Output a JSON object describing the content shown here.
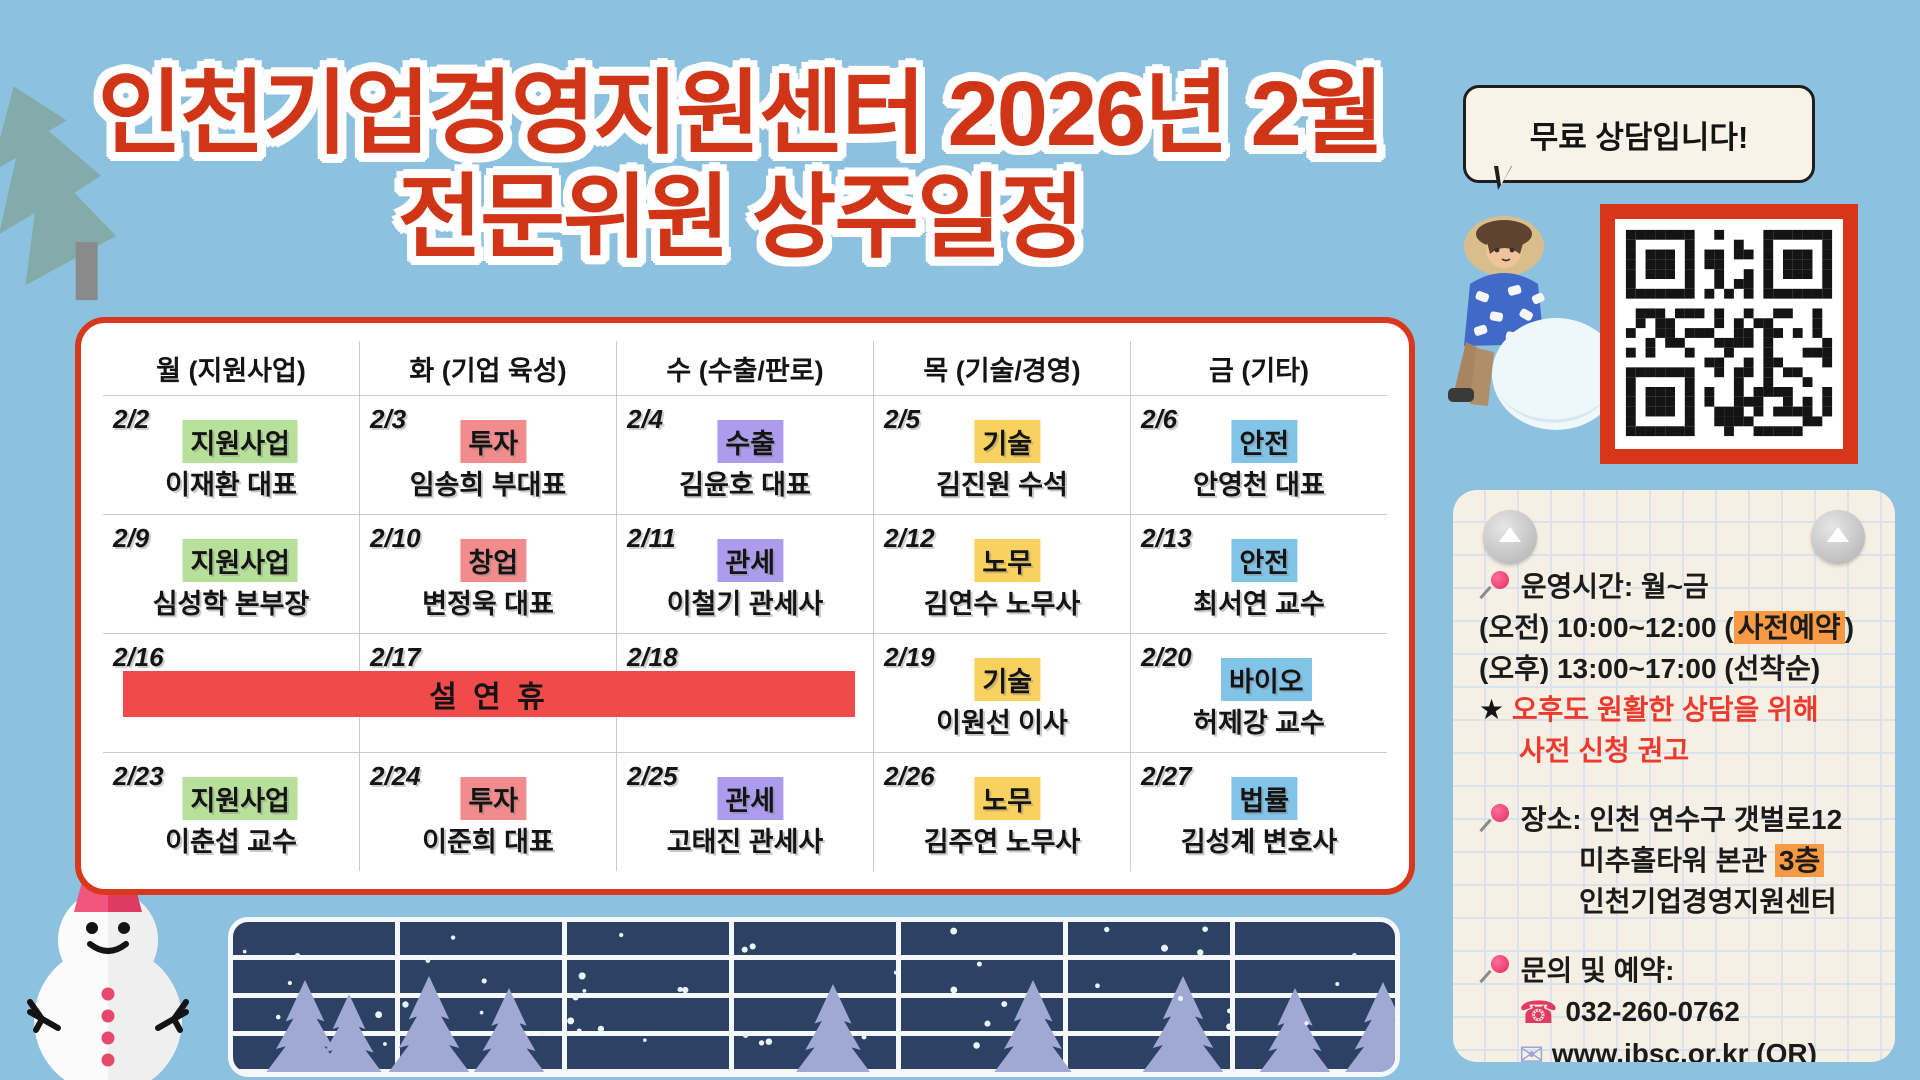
{
  "title": {
    "line1": "인천기업경영지원센터 2026년 2월",
    "line2": "전문위원 상주일정"
  },
  "speech_bubble": {
    "text": "무료 상담입니다!"
  },
  "calendar": {
    "headers": [
      "월 (지원사업)",
      "화 (기업 육성)",
      "수 (수출/판로)",
      "목 (기술/경영)",
      "금 (기타)"
    ],
    "holiday_banner": "설 연 휴",
    "weeks": [
      {
        "cells": [
          {
            "date": "2/2",
            "tag": "지원사업",
            "tag_color": "green",
            "name": "이재환 대표"
          },
          {
            "date": "2/3",
            "tag": "투자",
            "tag_color": "pink",
            "name": "임송희 부대표"
          },
          {
            "date": "2/4",
            "tag": "수출",
            "tag_color": "purple",
            "name": "김윤호 대표"
          },
          {
            "date": "2/5",
            "tag": "기술",
            "tag_color": "yellow",
            "name": "김진원 수석"
          },
          {
            "date": "2/6",
            "tag": "안전",
            "tag_color": "blue",
            "name": "안영천 대표"
          }
        ]
      },
      {
        "cells": [
          {
            "date": "2/9",
            "tag": "지원사업",
            "tag_color": "green",
            "name": "심성학 본부장"
          },
          {
            "date": "2/10",
            "tag": "창업",
            "tag_color": "pink",
            "name": "변정욱 대표"
          },
          {
            "date": "2/11",
            "tag": "관세",
            "tag_color": "purple",
            "name": "이철기 관세사"
          },
          {
            "date": "2/12",
            "tag": "노무",
            "tag_color": "yellow",
            "name": "김연수 노무사"
          },
          {
            "date": "2/13",
            "tag": "안전",
            "tag_color": "blue",
            "name": "최서연 교수"
          }
        ]
      },
      {
        "cells": [
          {
            "date": "2/16",
            "tag": "",
            "tag_color": "",
            "name": ""
          },
          {
            "date": "2/17",
            "tag": "",
            "tag_color": "",
            "name": ""
          },
          {
            "date": "2/18",
            "tag": "",
            "tag_color": "",
            "name": ""
          },
          {
            "date": "2/19",
            "tag": "기술",
            "tag_color": "yellow",
            "name": "이원선 이사"
          },
          {
            "date": "2/20",
            "tag": "바이오",
            "tag_color": "blue",
            "name": "허제강 교수"
          }
        ]
      },
      {
        "cells": [
          {
            "date": "2/23",
            "tag": "지원사업",
            "tag_color": "green",
            "name": "이춘섭 교수"
          },
          {
            "date": "2/24",
            "tag": "투자",
            "tag_color": "pink",
            "name": "이준희 대표"
          },
          {
            "date": "2/25",
            "tag": "관세",
            "tag_color": "purple",
            "name": "고태진 관세사"
          },
          {
            "date": "2/26",
            "tag": "노무",
            "tag_color": "yellow",
            "name": "김주연 노무사"
          },
          {
            "date": "2/27",
            "tag": "법률",
            "tag_color": "blue",
            "name": "김성계 변호사"
          }
        ]
      }
    ]
  },
  "info_panel": {
    "hours_title": "운영시간: 월~금",
    "hours_morning_prefix": "(오전) 10:00~12:00 (",
    "hours_morning_highlight": "사전예약",
    "hours_morning_suffix": ")",
    "hours_afternoon": "(오후) 13:00~17:00 (선착순)",
    "notice_star": "★",
    "notice_line1": "오후도 원활한 상담을 위해",
    "notice_line2": "사전 신청 권고",
    "location_title": "장소: 인천 연수구 갯벌로12",
    "location_line2_prefix": "미추홀타워 본관 ",
    "location_line2_highlight": "3층",
    "location_line3": "인천기업경영지원센터",
    "contact_title": "문의 및 예약:",
    "phone": "032-260-0762",
    "website": "www.ibsc.or.kr (QR)"
  },
  "colors": {
    "background": "#8CC1DF",
    "title_red": "#D13517",
    "card_border": "#D8391C",
    "holiday_red": "#F04A4A",
    "tag_green": "#B7E09A",
    "tag_pink": "#F28C8C",
    "tag_purple": "#AC9CEE",
    "tag_yellow": "#F8D15E",
    "tag_blue": "#82C4E8",
    "highlight_orange": "#F79A43",
    "notice_red": "#EE3A2E",
    "panel_bg": "#F6F0E4",
    "strip_navy": "#2D4164",
    "strip_tree": "#9FA9D3"
  }
}
